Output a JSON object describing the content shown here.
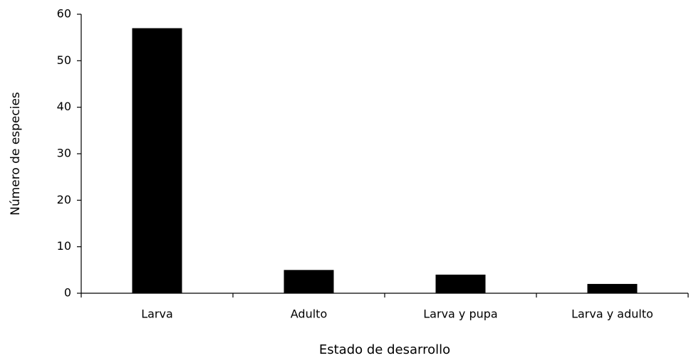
{
  "chart_data": {
    "type": "bar",
    "categories": [
      "Larva",
      "Adulto",
      "Larva y pupa",
      "Larva y adulto"
    ],
    "values": [
      57,
      5,
      4,
      2
    ],
    "color": "#000000",
    "xlabel": "Estado de desarrollo",
    "ylabel": "Número de especies",
    "ylim": [
      0,
      60
    ],
    "yticks": [
      0,
      10,
      20,
      30,
      40,
      50,
      60
    ],
    "grid": false
  }
}
